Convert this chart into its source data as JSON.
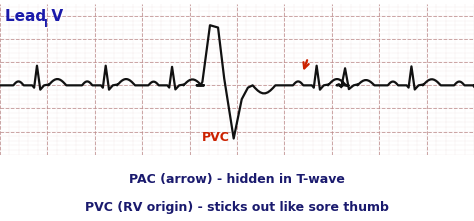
{
  "title_text": "Lead V",
  "title_subscript": "I",
  "title_color": "#1a1aaa",
  "title_fontsize": 11,
  "bg_color": "#ffffff",
  "grid_color": "#ccaaaa",
  "grid_dot_color": "#bb8888",
  "ecg_color": "#111111",
  "ecg_lw": 1.6,
  "pvc_label": "PVC",
  "pvc_label_color": "#cc2200",
  "pvc_label_fontsize": 9,
  "arrow_color": "#cc2200",
  "caption_line1": "PAC (arrow) - hidden in T-wave",
  "caption_line2": "PVC (RV origin) - sticks out like sore thumb",
  "caption_color": "#1a1a6e",
  "caption_fontsize": 9,
  "xlim": [
    0,
    1
  ],
  "ylim": [
    -3.0,
    3.5
  ],
  "baseline": 0.0
}
